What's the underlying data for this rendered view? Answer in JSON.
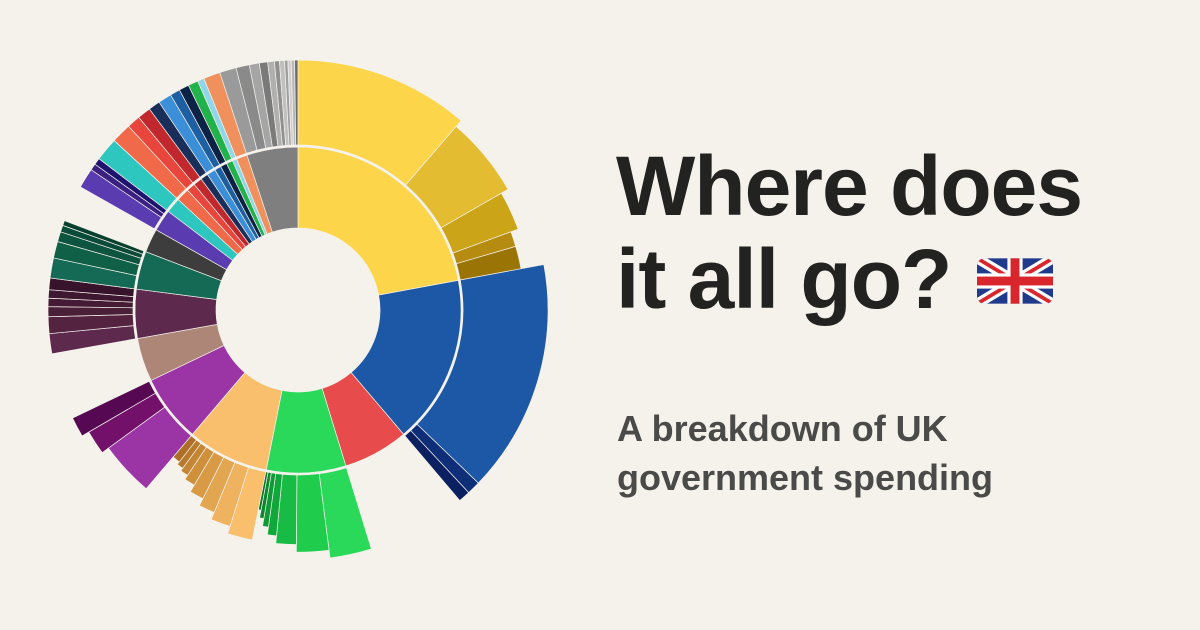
{
  "header": {
    "title_line1": "Where does",
    "title_line2": "it all go?",
    "flag_icon": "uk-flag-icon",
    "subtitle_line1": "A breakdown of UK",
    "subtitle_line2": "government spending"
  },
  "colors": {
    "background": "#f5f2ec",
    "title": "#222220",
    "subtitle": "#4a4a48"
  },
  "chart_data": {
    "type": "sunburst",
    "groups": [
      {
        "color": "#fdd54a",
        "share": 0.205,
        "children": [
          {
            "color": "#fdd54a",
            "share": 0.105,
            "depth": 0.55
          },
          {
            "color": "#e4bc32",
            "share": 0.05,
            "depth": 0.5
          },
          {
            "color": "#cba418",
            "share": 0.025,
            "depth": 0.45
          },
          {
            "color": "#b58c10",
            "share": 0.01,
            "depth": 0.4
          },
          {
            "color": "#9a7404",
            "share": 0.015,
            "depth": 0.4
          }
        ]
      },
      {
        "color": "#1d58a6",
        "share": 0.155,
        "children": [
          {
            "color": "#1d58a6",
            "share": 0.14,
            "depth": 0.55
          },
          {
            "color": "#0f2e78",
            "share": 0.008,
            "depth": 0.55
          },
          {
            "color": "#0a2060",
            "share": 0.007,
            "depth": 0.55
          }
        ]
      },
      {
        "color": "#e84b4b",
        "share": 0.06,
        "children": []
      },
      {
        "color": "#2ad85a",
        "share": 0.073,
        "children": [
          {
            "color": "#2ad85a",
            "share": 0.025,
            "depth": 0.55
          },
          {
            "color": "#1fcc4c",
            "share": 0.02,
            "depth": 0.5
          },
          {
            "color": "#18bb44",
            "share": 0.013,
            "depth": 0.45
          },
          {
            "color": "#10a83a",
            "share": 0.006,
            "depth": 0.4
          },
          {
            "color": "#0e9a35",
            "share": 0.004,
            "depth": 0.35
          },
          {
            "color": "#0a8a2e",
            "share": 0.003,
            "depth": 0.3
          },
          {
            "color": "#08782a",
            "share": 0.002,
            "depth": 0.25
          }
        ]
      },
      {
        "color": "#f9bf6c",
        "share": 0.075,
        "children": [
          {
            "color": "#f9bf6c",
            "share": 0.016,
            "depth": 0.45
          },
          {
            "color": "#efb25e",
            "share": 0.013,
            "depth": 0.4
          },
          {
            "color": "#e2a550",
            "share": 0.011,
            "depth": 0.35
          },
          {
            "color": "#d89a45",
            "share": 0.01,
            "depth": 0.3
          },
          {
            "color": "#cf903c",
            "share": 0.008,
            "depth": 0.25
          },
          {
            "color": "#c48534",
            "share": 0.006,
            "depth": 0.22
          },
          {
            "color": "#b87a2c",
            "share": 0.005,
            "depth": 0.2
          },
          {
            "color": "#ac6f25",
            "share": 0.006,
            "depth": 0.18
          }
        ]
      },
      {
        "color": "#9b35a6",
        "share": 0.062,
        "children": [
          {
            "color": "#9b35a6",
            "share": 0.035,
            "depth": 0.45
          },
          {
            "color": "#72106a",
            "share": 0.015,
            "depth": 0.5
          },
          {
            "color": "#560852",
            "share": 0.012,
            "depth": 0.55
          }
        ]
      },
      {
        "color": "#ae8678",
        "share": 0.04,
        "children": []
      },
      {
        "color": "#5d2a4e",
        "share": 0.045,
        "children": [
          {
            "color": "#5d2a4e",
            "share": 0.012,
            "depth": 0.55
          },
          {
            "color": "#53233f",
            "share": 0.01,
            "depth": 0.55
          },
          {
            "color": "#4a1f38",
            "share": 0.006,
            "depth": 0.55
          },
          {
            "color": "#441a34",
            "share": 0.005,
            "depth": 0.55
          },
          {
            "color": "#3e1730",
            "share": 0.005,
            "depth": 0.55
          },
          {
            "color": "#38142c",
            "share": 0.007,
            "depth": 0.55
          }
        ]
      },
      {
        "color": "#146a54",
        "share": 0.035,
        "children": [
          {
            "color": "#146a54",
            "share": 0.012,
            "depth": 0.55
          },
          {
            "color": "#106048",
            "share": 0.01,
            "depth": 0.55
          },
          {
            "color": "#0c5440",
            "share": 0.006,
            "depth": 0.55
          },
          {
            "color": "#0a4a38",
            "share": 0.004,
            "depth": 0.55
          },
          {
            "color": "#084030",
            "share": 0.003,
            "depth": 0.55
          }
        ]
      },
      {
        "color": "#3d3d3d",
        "share": 0.022,
        "children": []
      },
      {
        "color": "#5a3cb0",
        "share": 0.02,
        "children": [
          {
            "color": "#5a3cb0",
            "share": 0.012,
            "depth": 0.55
          },
          {
            "color": "#3a2080",
            "share": 0.004,
            "depth": 0.55
          },
          {
            "color": "#1e1470",
            "share": 0.004,
            "depth": 0.55
          }
        ]
      },
      {
        "color": "#2ec7c0",
        "share": 0.014,
        "children": [
          {
            "color": "#2ec7c0",
            "share": 0.014,
            "depth": 0.55
          }
        ]
      },
      {
        "color": "#f06a4a",
        "share": 0.012,
        "children": [
          {
            "color": "#f06a4a",
            "share": 0.012,
            "depth": 0.55
          }
        ]
      },
      {
        "color": "#e8453c",
        "share": 0.008,
        "children": [
          {
            "color": "#e8453c",
            "share": 0.008,
            "depth": 0.55
          }
        ]
      },
      {
        "color": "#c0282e",
        "share": 0.008,
        "children": [
          {
            "color": "#c0282e",
            "share": 0.008,
            "depth": 0.55
          }
        ]
      },
      {
        "color": "#1a2e5a",
        "share": 0.007,
        "children": [
          {
            "color": "#1a2e5a",
            "share": 0.007,
            "depth": 0.55
          }
        ]
      },
      {
        "color": "#3a8fd8",
        "share": 0.008,
        "children": [
          {
            "color": "#3a8fd8",
            "share": 0.008,
            "depth": 0.55
          }
        ]
      },
      {
        "color": "#1d5fa0",
        "share": 0.006,
        "children": [
          {
            "color": "#1d5fa0",
            "share": 0.006,
            "depth": 0.55
          }
        ]
      },
      {
        "color": "#0d2345",
        "share": 0.006,
        "children": [
          {
            "color": "#0d2345",
            "share": 0.006,
            "depth": 0.55
          }
        ]
      },
      {
        "color": "#22b24c",
        "share": 0.006,
        "children": [
          {
            "color": "#22b24c",
            "share": 0.006,
            "depth": 0.55
          }
        ]
      },
      {
        "color": "#8fd6e8",
        "share": 0.004,
        "children": [
          {
            "color": "#8fd6e8",
            "share": 0.004,
            "depth": 0.55
          }
        ]
      },
      {
        "color": "#f0905c",
        "share": 0.01,
        "children": [
          {
            "color": "#f0905c",
            "share": 0.01,
            "depth": 0.55
          }
        ]
      },
      {
        "color": "#7f7f7f",
        "share": 0.047,
        "children": [
          {
            "color": "#9a9a9a",
            "share": 0.01,
            "depth": 0.55
          },
          {
            "color": "#8a8a8a",
            "share": 0.008,
            "depth": 0.55
          },
          {
            "color": "#a5a5a5",
            "share": 0.006,
            "depth": 0.55
          },
          {
            "color": "#7a7a7a",
            "share": 0.005,
            "depth": 0.55
          },
          {
            "color": "#b0b0b0",
            "share": 0.004,
            "depth": 0.55
          },
          {
            "color": "#909090",
            "share": 0.003,
            "depth": 0.55
          },
          {
            "color": "#c0c0c0",
            "share": 0.003,
            "depth": 0.55
          },
          {
            "color": "#a0a0a0",
            "share": 0.002,
            "depth": 0.55
          },
          {
            "color": "#d0d0d0",
            "share": 0.002,
            "depth": 0.55
          },
          {
            "color": "#b8b8b8",
            "share": 0.002,
            "depth": 0.55
          },
          {
            "color": "#6e6e6e",
            "share": 0.002,
            "depth": 0.55
          }
        ]
      }
    ]
  }
}
